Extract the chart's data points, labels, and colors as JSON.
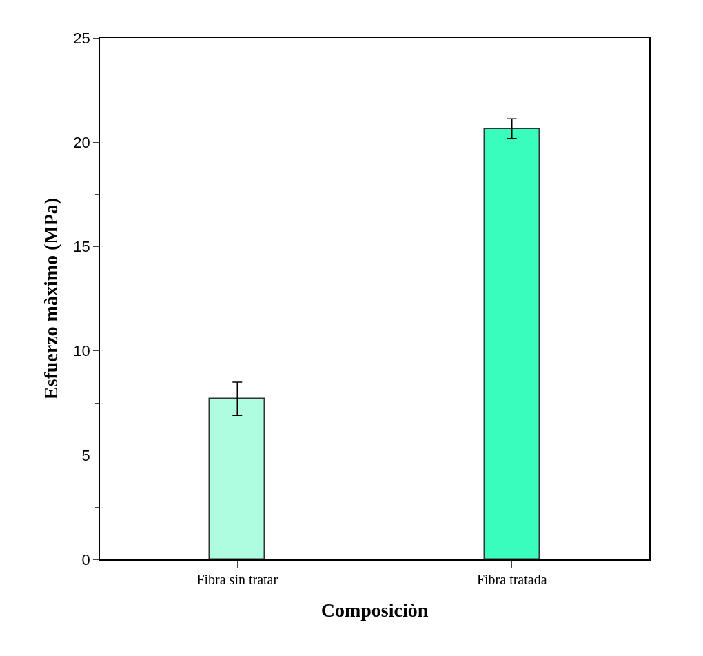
{
  "chart_data": {
    "type": "bar",
    "xlabel": "Composiciòn",
    "ylabel": "Esfuerzo màximo (MPa)",
    "categories": [
      "Fibra sin tratar",
      "Fibra tratada"
    ],
    "values": [
      7.7,
      20.65
    ],
    "colors": [
      "#aefde1",
      "#38fdbd"
    ],
    "errors": [
      0.8,
      0.47
    ],
    "ylim": [
      0,
      25
    ],
    "yticks": [
      0,
      5,
      10,
      15,
      20,
      25
    ]
  }
}
